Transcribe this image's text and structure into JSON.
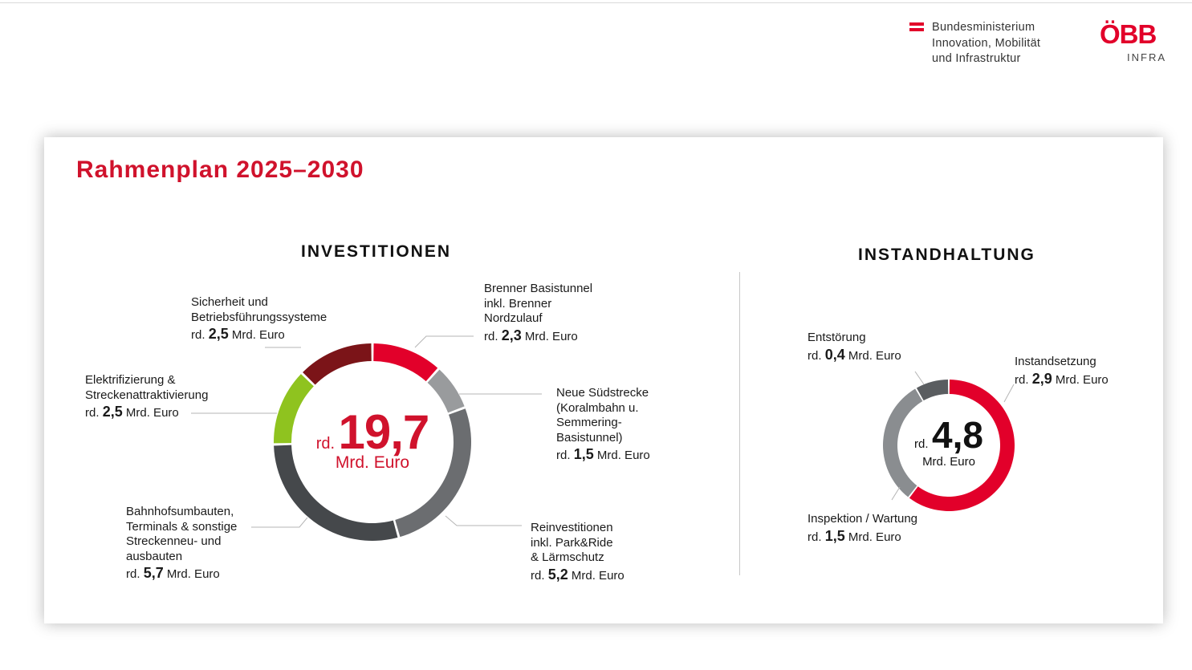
{
  "header": {
    "ministry_text": "Bundesministerium\nInnovation, Mobilität\nund Infrastruktur",
    "logo_word": "ÖBB",
    "logo_sub": "INFRA"
  },
  "title": "Rahmenplan 2025–2030",
  "colors": {
    "accent": "#d0122c"
  },
  "chart_data": [
    {
      "type": "pie",
      "title": "INVESTITIONEN",
      "center": {
        "prefix": "rd.",
        "value": "19,7",
        "unit": "Mrd. Euro"
      },
      "categories": [
        "Brenner Basistunnel inkl. Brenner Nordzulauf",
        "Neue Südstrecke (Koralmbahn u. Semmering-Basistunnel)",
        "Reinvestitionen inkl. Park&Ride & Lärmschutz",
        "Bahnhofsumbauten, Terminals & sonstige Streckenneu- und ausbauten",
        "Elektrifizierung & Streckenattraktivierung",
        "Sicherheit und Betriebsführungssysteme"
      ],
      "values": [
        2.3,
        1.5,
        5.2,
        5.7,
        2.5,
        2.5
      ],
      "colors": [
        "#e2002a",
        "#999b9d",
        "#6b6d70",
        "#45484b",
        "#8fc31f",
        "#7b1418"
      ],
      "labels": [
        {
          "name": "Brenner Basistunnel\ninkl. Brenner\nNordzulauf",
          "pre": "rd.",
          "val": "2,3",
          "unit": "Mrd. Euro"
        },
        {
          "name": "Neue Südstrecke\n(Koralmbahn u.\nSemmering-\nBasistunnel)",
          "pre": "rd.",
          "val": "1,5",
          "unit": "Mrd. Euro"
        },
        {
          "name": "Reinvestitionen\ninkl. Park&Ride\n& Lärmschutz",
          "pre": "rd.",
          "val": "5,2",
          "unit": "Mrd. Euro"
        },
        {
          "name": "Bahnhofsumbauten,\nTerminals & sonstige\nStreckenneu- und\nausbauten",
          "pre": "rd.",
          "val": "5,7",
          "unit": "Mrd. Euro"
        },
        {
          "name": "Elektrifizierung &\nStreckenattraktivierung",
          "pre": "rd.",
          "val": "2,5",
          "unit": "Mrd. Euro"
        },
        {
          "name": "Sicherheit und\nBetriebsführungssysteme",
          "pre": "rd.",
          "val": "2,5",
          "unit": "Mrd. Euro"
        }
      ]
    },
    {
      "type": "pie",
      "title": "INSTANDHALTUNG",
      "center": {
        "prefix": "rd.",
        "value": "4,8",
        "unit": "Mrd. Euro"
      },
      "categories": [
        "Instandsetzung",
        "Inspektion / Wartung",
        "Entstörung"
      ],
      "values": [
        2.9,
        1.5,
        0.4
      ],
      "colors": [
        "#e2002a",
        "#8a8d90",
        "#5a5d60"
      ],
      "labels": [
        {
          "name": "Instandsetzung",
          "pre": "rd.",
          "val": "2,9",
          "unit": "Mrd. Euro"
        },
        {
          "name": "Inspektion / Wartung",
          "pre": "rd.",
          "val": "1,5",
          "unit": "Mrd. Euro"
        },
        {
          "name": "Entstörung",
          "pre": "rd.",
          "val": "0,4",
          "unit": "Mrd. Euro"
        }
      ]
    }
  ]
}
